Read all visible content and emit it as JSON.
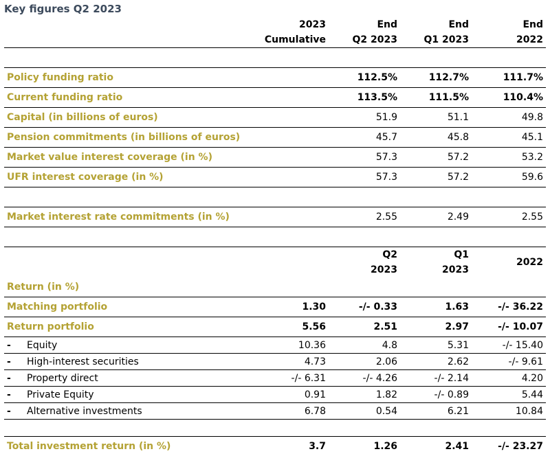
{
  "title": "Key figures Q2 2023",
  "header": {
    "col1": [
      "2023",
      "Cumulative"
    ],
    "col2": [
      "End",
      "Q2 2023"
    ],
    "col3": [
      "End",
      "Q1 2023"
    ],
    "col4": [
      "End",
      "2022"
    ]
  },
  "funding_rows": [
    {
      "label": "Policy funding ratio",
      "q2": "112.5%",
      "q1": "112.7%",
      "y2022": "111.7%"
    },
    {
      "label": "Current funding ratio",
      "q2": "113.5%",
      "q1": "111.5%",
      "y2022": "110.4%"
    },
    {
      "label": "Capital (in billions of euros)",
      "q2": "51.9",
      "q1": "51.1",
      "y2022": "49.8"
    },
    {
      "label": "Pension commitments (in billions of euros)",
      "q2": "45.7",
      "q1": "45.8",
      "y2022": "45.1"
    },
    {
      "label": "Market value interest coverage (in %)",
      "q2": "57.3",
      "q1": "57.2",
      "y2022": "53.2"
    },
    {
      "label": "UFR interest coverage (in %)",
      "q2": "57.3",
      "q1": "57.2",
      "y2022": "59.6"
    }
  ],
  "market_rate_row": {
    "label": "Market interest rate commitments (in %)",
    "q2": "2.55",
    "q1": "2.49",
    "y2022": "2.55"
  },
  "return_header": {
    "col2": [
      "Q2",
      "2023"
    ],
    "col3": [
      "Q1",
      "2023"
    ],
    "col4": "2022"
  },
  "return_section_label": "Return (in %)",
  "matching_row": {
    "label": "Matching portfolio",
    "cum": "1.30",
    "q2": "-/- 0.33",
    "q1": "1.63",
    "y2022": "-/- 36.22"
  },
  "return_portfolio_row": {
    "label": "Return portfolio",
    "cum": "5.56",
    "q2": "2.51",
    "q1": "2.97",
    "y2022": "-/- 10.07"
  },
  "sub_rows": [
    {
      "bullet": "-",
      "label": "Equity",
      "cum": "10.36",
      "q2": "4.8",
      "q1": "5.31",
      "y2022": "-/- 15.40"
    },
    {
      "bullet": "-",
      "label": "High-interest securities",
      "cum": "4.73",
      "q2": "2.06",
      "q1": "2.62",
      "y2022": "-/- 9.61"
    },
    {
      "bullet": "-",
      "label": "Property direct",
      "cum": "-/- 6.31",
      "q2": "-/- 4.26",
      "q1": "-/- 2.14",
      "y2022": "4.20"
    },
    {
      "bullet": "-",
      "label": "Private Equity",
      "cum": "0.91",
      "q2": "1.82",
      "q1": "-/- 0.89",
      "y2022": "5.44"
    },
    {
      "bullet": "-",
      "label": "Alternative investments",
      "cum": "6.78",
      "q2": "0.54",
      "q1": "6.21",
      "y2022": "10.84"
    }
  ],
  "total_row": {
    "label": "Total investment return (in %)",
    "cum": "3.7",
    "q2": "1.26",
    "q1": "2.41",
    "y2022": "-/- 23.27"
  },
  "colors": {
    "gold": "#b4a234",
    "title": "#3c4a5c",
    "rule": "#000000"
  }
}
